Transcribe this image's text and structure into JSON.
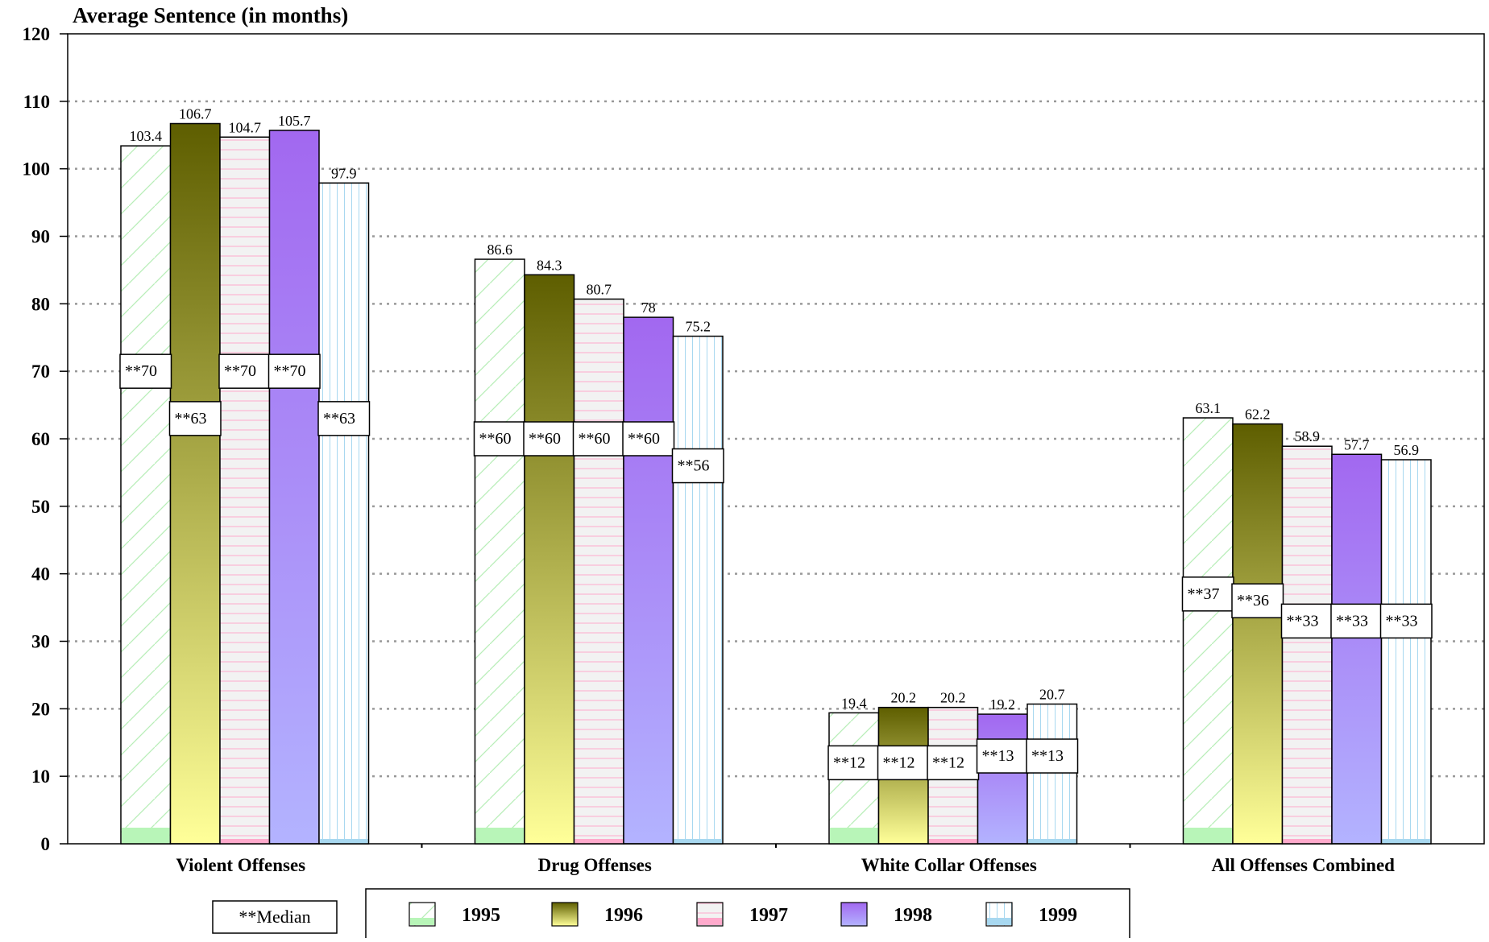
{
  "chart_data": {
    "type": "bar",
    "title": "Average Sentence (in months)",
    "ylim": [
      0,
      120
    ],
    "yticks": [
      0,
      10,
      20,
      30,
      40,
      50,
      60,
      70,
      80,
      90,
      100,
      110,
      120
    ],
    "grid": true,
    "categories": [
      "Violent Offenses",
      "Drug Offenses",
      "White Collar Offenses",
      "All Offenses Combined"
    ],
    "series": [
      {
        "name": "1995",
        "values": [
          103.4,
          86.6,
          19.4,
          63.1
        ],
        "medians": [
          70,
          60,
          12,
          37
        ],
        "value_labels": [
          "103.4",
          "86.6",
          "19.4",
          "63.1"
        ],
        "median_labels": [
          "**70",
          "**60",
          "**12",
          "**37"
        ]
      },
      {
        "name": "1996",
        "values": [
          106.7,
          84.3,
          20.2,
          62.2
        ],
        "medians": [
          63,
          60,
          12,
          36
        ],
        "value_labels": [
          "106.7",
          "84.3",
          "20.2",
          "62.2"
        ],
        "median_labels": [
          "**63",
          "**60",
          "**12",
          "**36"
        ]
      },
      {
        "name": "1997",
        "values": [
          104.7,
          80.7,
          20.2,
          58.9
        ],
        "medians": [
          70,
          60,
          12,
          33
        ],
        "value_labels": [
          "104.7",
          "80.7",
          "20.2",
          "58.9"
        ],
        "median_labels": [
          "**70",
          "**60",
          "**12",
          "**33"
        ]
      },
      {
        "name": "1998",
        "values": [
          105.7,
          78,
          19.2,
          57.7
        ],
        "medians": [
          70,
          60,
          13,
          33
        ],
        "value_labels": [
          "105.7",
          "78",
          "19.2",
          "57.7"
        ],
        "median_labels": [
          "**70",
          "**60",
          "**13",
          "**33"
        ]
      },
      {
        "name": "1999",
        "values": [
          97.9,
          75.2,
          20.7,
          56.9
        ],
        "medians": [
          63,
          56,
          13,
          33
        ],
        "value_labels": [
          "97.9",
          "75.2",
          "20.7",
          "56.9"
        ],
        "median_labels": [
          "**63",
          "**56",
          "**13",
          "**33"
        ]
      }
    ],
    "legend": {
      "position": "bottom",
      "median_label": "**Median"
    },
    "colors": {
      "s1995": "#b8f5b8",
      "s1996_top": "#5e5e00",
      "s1996_bottom": "#ffff99",
      "s1997_fill": "#f0f0f0",
      "s1997_stripe": "#ffaacc",
      "s1998_top": "#a268f0",
      "s1998_bottom": "#b3b3ff",
      "s1999_stripe": "#a8d8f0",
      "grid": "#999999"
    }
  }
}
